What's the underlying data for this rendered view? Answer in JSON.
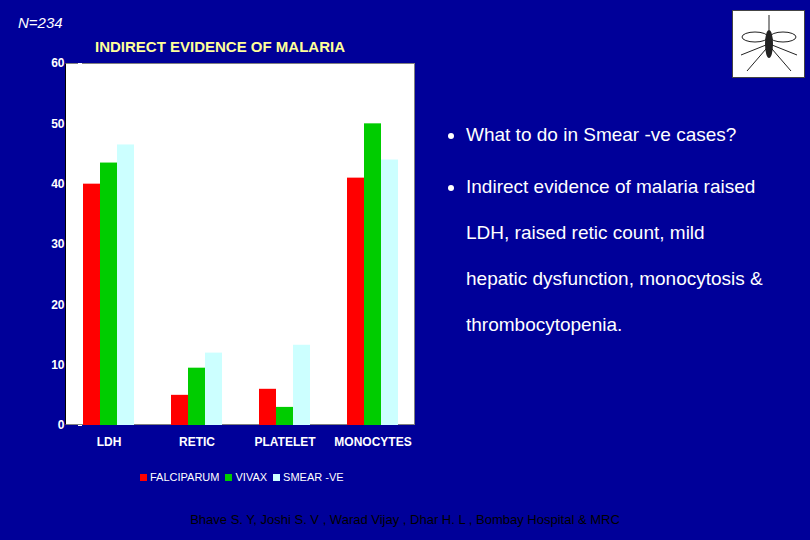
{
  "chart_data": {
    "type": "bar",
    "title": "INDIRECT EVIDENCE OF MALARIA",
    "annotations": {
      "corner": "N=234",
      "bullets": [
        "What to do in Smear -ve cases?",
        "Indirect evidence of malaria raised LDH, raised retic count, mild hepatic dysfunction, monocytosis & thrombocytopenia."
      ],
      "credit": "Bhave S. Y, Joshi S. V , Warad Vijay , Dhar H. L , Bombay Hospital & MRC"
    },
    "categories": [
      "LDH",
      "RETIC",
      "PLATELET",
      "MONOCYTES"
    ],
    "series": [
      {
        "name": "FALCIPARUM",
        "color": "#ff0000",
        "values": [
          40,
          5,
          6,
          41
        ]
      },
      {
        "name": "VIVAX",
        "color": "#00cc00",
        "values": [
          43.5,
          9.5,
          3,
          50
        ]
      },
      {
        "name": "SMEAR -VE",
        "color": "#ccffff",
        "values": [
          46.5,
          12,
          13.3,
          44
        ]
      }
    ],
    "ylim": [
      0,
      60
    ],
    "yticks": [
      0,
      10,
      20,
      30,
      40,
      50,
      60
    ],
    "grid": false,
    "legend": "bottom"
  }
}
